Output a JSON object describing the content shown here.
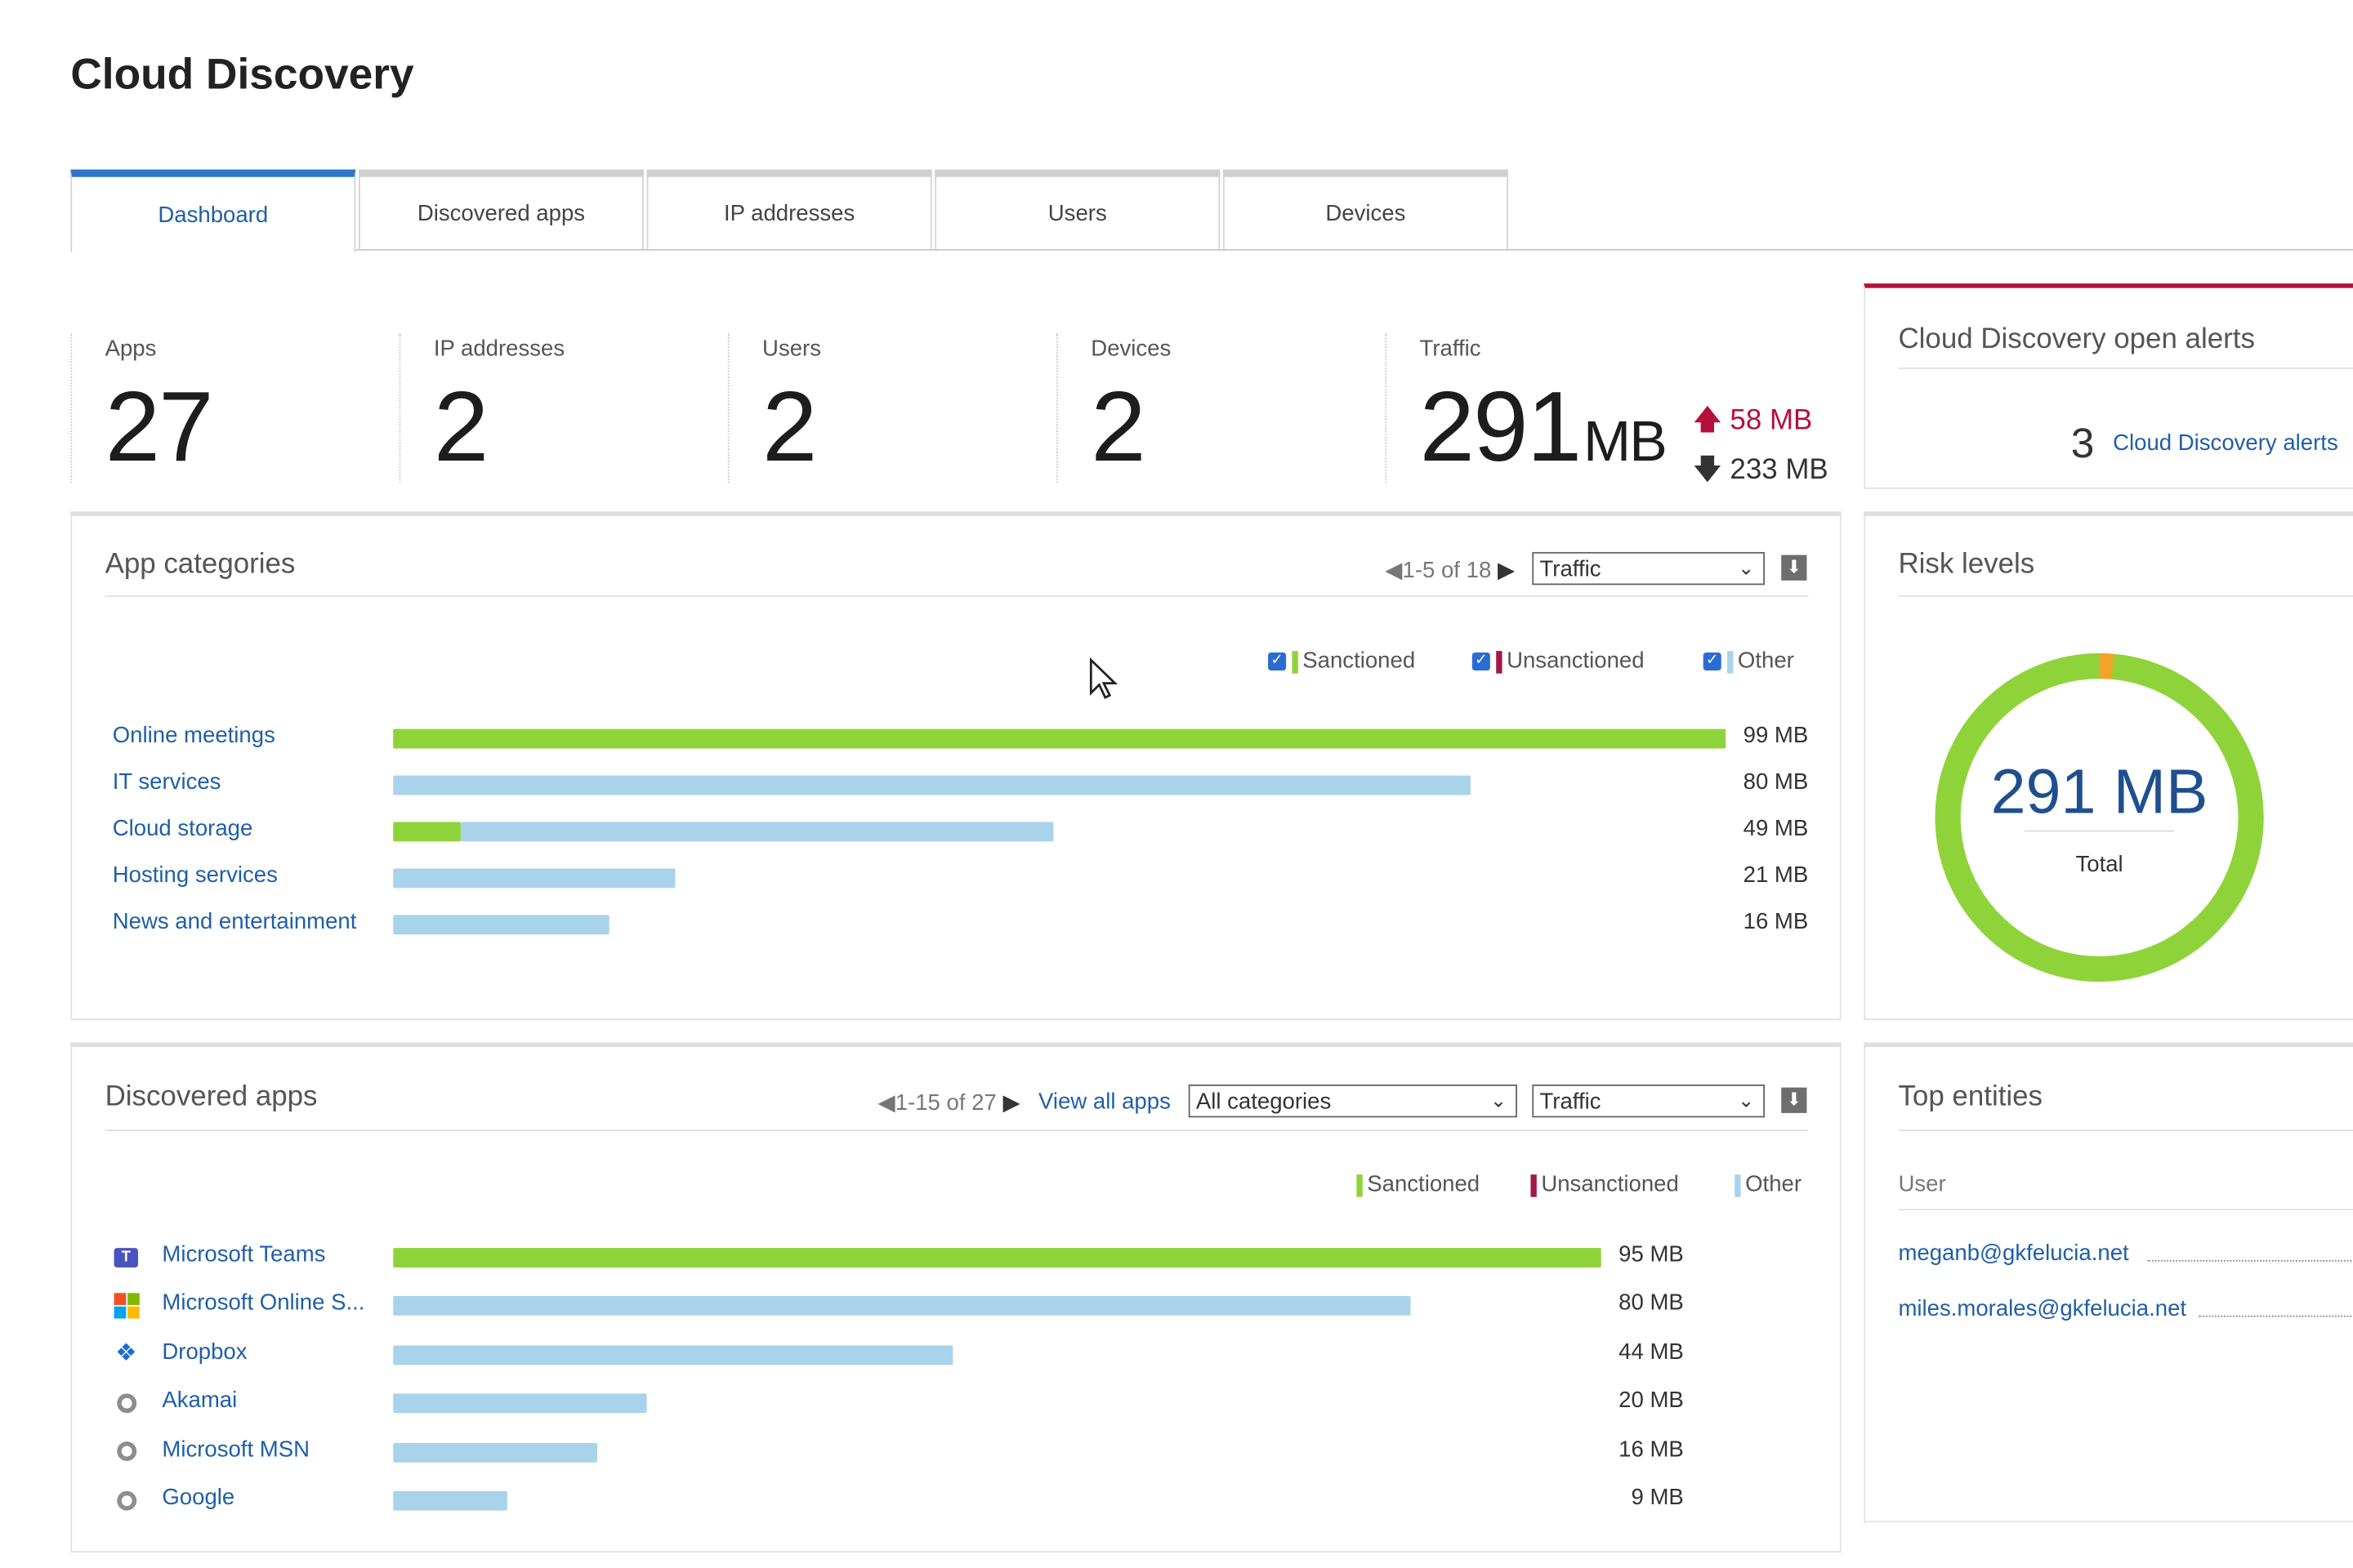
{
  "page": {
    "title": "Cloud Discovery"
  },
  "tabs": [
    {
      "label": "Dashboard",
      "active": true
    },
    {
      "label": "Discovered apps"
    },
    {
      "label": "IP addresses"
    },
    {
      "label": "Users"
    },
    {
      "label": "Devices"
    }
  ],
  "kpis": {
    "apps": {
      "label": "Apps",
      "value": "27"
    },
    "ip": {
      "label": "IP addresses",
      "value": "2"
    },
    "users": {
      "label": "Users",
      "value": "2"
    },
    "devices": {
      "label": "Devices",
      "value": "2"
    },
    "traffic": {
      "label": "Traffic",
      "value": "291",
      "unit": "MB",
      "upload": "58 MB",
      "download": "233 MB"
    }
  },
  "alerts": {
    "title": "Cloud Discovery open alerts",
    "count": "3",
    "link": "Cloud Discovery alerts"
  },
  "colors": {
    "sanctioned": "#8fd33a",
    "unsanctioned": "#a3174a",
    "other": "#a9d3ea",
    "accent": "#2e75c7"
  },
  "app_categories": {
    "title": "App categories",
    "pager": "1-5 of 18",
    "metric": "Traffic",
    "legend": {
      "sanctioned": "Sanctioned",
      "unsanctioned": "Unsanctioned",
      "other": "Other"
    },
    "max_mb": 99,
    "rows": [
      {
        "label": "Online meetings",
        "value": "99 MB",
        "sanctioned_mb": 99,
        "other_mb": 0
      },
      {
        "label": "IT services",
        "value": "80 MB",
        "sanctioned_mb": 0,
        "other_mb": 80
      },
      {
        "label": "Cloud storage",
        "value": "49 MB",
        "sanctioned_mb": 5,
        "other_mb": 44
      },
      {
        "label": "Hosting services",
        "value": "21 MB",
        "sanctioned_mb": 0,
        "other_mb": 21
      },
      {
        "label": "News and entertainment",
        "value": "16 MB",
        "sanctioned_mb": 0,
        "other_mb": 16
      }
    ]
  },
  "risk": {
    "title": "Risk levels",
    "total_value": "291 MB",
    "total_label": "Total"
  },
  "discovered_apps": {
    "title": "Discovered apps",
    "pager": "1-15 of 27",
    "view_all": "View all apps",
    "category": "All categories",
    "metric": "Traffic",
    "legend": {
      "sanctioned": "Sanctioned",
      "unsanctioned": "Unsanctioned",
      "other": "Other"
    },
    "max_mb": 95,
    "rows": [
      {
        "label": "Microsoft Teams",
        "icon": "teams-icon",
        "value": "95 MB",
        "mb": 95,
        "status": "sanctioned"
      },
      {
        "label": "Microsoft Online S...",
        "icon": "microsoft-logo-icon",
        "value": "80 MB",
        "mb": 80,
        "status": "other"
      },
      {
        "label": "Dropbox",
        "icon": "dropbox-icon",
        "value": "44 MB",
        "mb": 44,
        "status": "other"
      },
      {
        "label": "Akamai",
        "icon": "generic-app-icon",
        "value": "20 MB",
        "mb": 20,
        "status": "other"
      },
      {
        "label": "Microsoft MSN",
        "icon": "generic-app-icon",
        "value": "16 MB",
        "mb": 16,
        "status": "other"
      },
      {
        "label": "Google",
        "icon": "generic-app-icon",
        "value": "9 MB",
        "mb": 9,
        "status": "other"
      }
    ]
  },
  "top_entities": {
    "title": "Top entities",
    "column": "User",
    "users": [
      "meganb@gkfelucia.net",
      "miles.morales@gkfelucia.net"
    ]
  }
}
